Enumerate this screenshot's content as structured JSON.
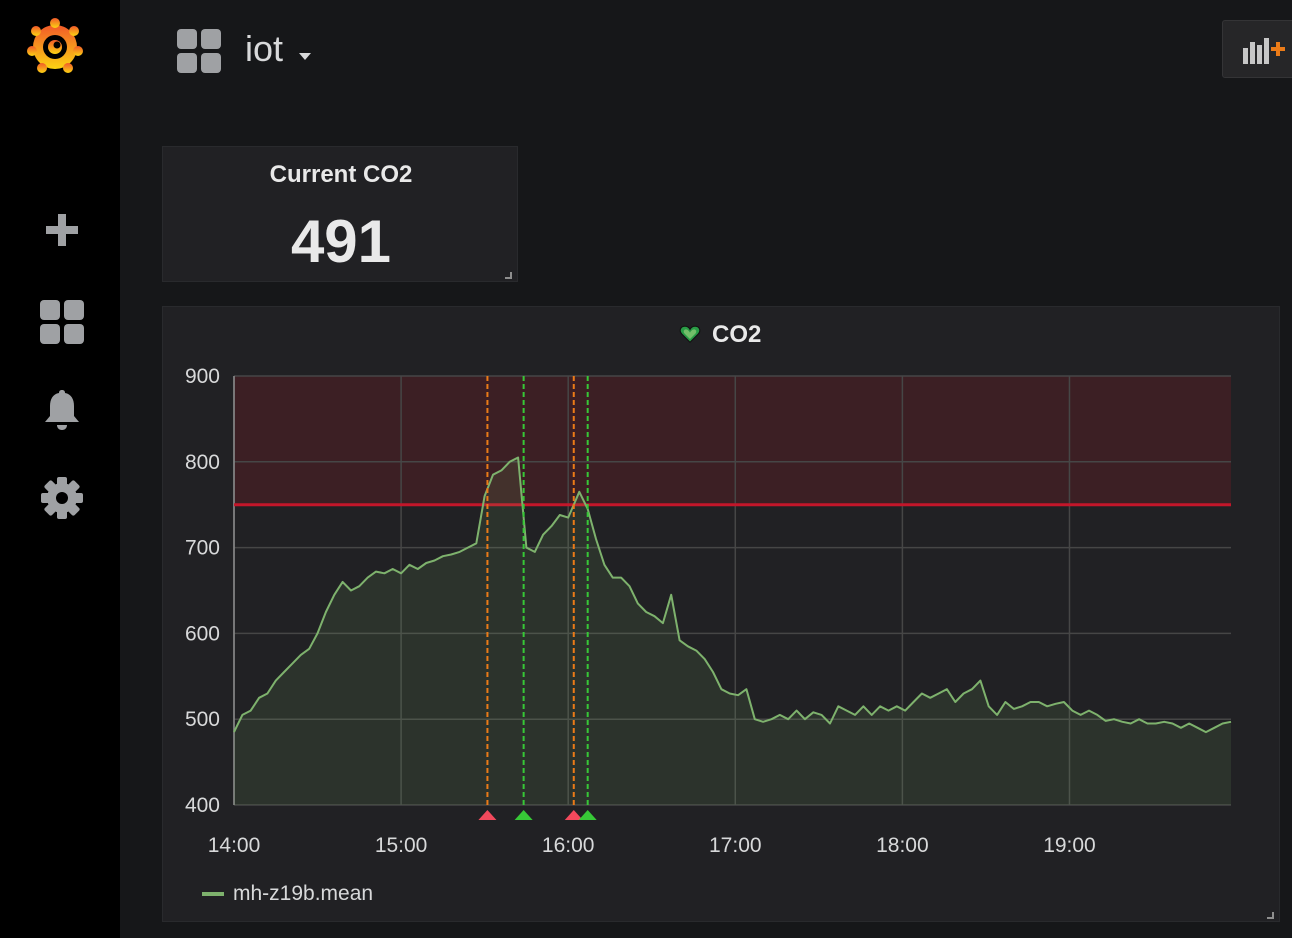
{
  "topbar": {
    "dashboard_title": "iot"
  },
  "sidebar": {
    "items": [
      {
        "icon": "plus-icon"
      },
      {
        "icon": "dashboards-icon"
      },
      {
        "icon": "bell-icon"
      },
      {
        "icon": "gear-icon"
      }
    ]
  },
  "stat_panel": {
    "title": "Current CO2",
    "value": "491"
  },
  "graph_panel": {
    "title": "CO2",
    "alert_state_icon": "heart-icon",
    "legend": [
      {
        "name": "mh-z19b.mean",
        "color": "#7eb26d"
      }
    ]
  },
  "chart_data": {
    "type": "area",
    "x_ticks": [
      "14:00",
      "15:00",
      "16:00",
      "17:00",
      "18:00",
      "19:00"
    ],
    "y_ticks": [
      "900",
      "800",
      "700",
      "600",
      "500",
      "400"
    ],
    "xlim": [
      "14:00",
      "19:58"
    ],
    "ylim": [
      400,
      900
    ],
    "grid": true,
    "legend_position": "bottom-left",
    "threshold": {
      "value": 750,
      "op": "gt",
      "color": "#c4162a"
    },
    "annotations": [
      {
        "time": "15:31",
        "state": "alerting",
        "color": "#f2495c"
      },
      {
        "time": "15:44",
        "state": "ok",
        "color": "#37872d"
      },
      {
        "time": "16:02",
        "state": "alerting",
        "color": "#f2495c"
      },
      {
        "time": "16:07",
        "state": "ok",
        "color": "#37872d"
      }
    ],
    "series": [
      {
        "name": "mh-z19b.mean",
        "color": "#7eb26d",
        "points": [
          [
            "14:00",
            485
          ],
          [
            "14:03",
            505
          ],
          [
            "14:06",
            510
          ],
          [
            "14:09",
            525
          ],
          [
            "14:12",
            530
          ],
          [
            "14:15",
            545
          ],
          [
            "14:18",
            555
          ],
          [
            "14:21",
            565
          ],
          [
            "14:24",
            575
          ],
          [
            "14:27",
            582
          ],
          [
            "14:30",
            600
          ],
          [
            "14:33",
            625
          ],
          [
            "14:36",
            645
          ],
          [
            "14:39",
            660
          ],
          [
            "14:42",
            650
          ],
          [
            "14:45",
            655
          ],
          [
            "14:48",
            665
          ],
          [
            "14:51",
            672
          ],
          [
            "14:54",
            670
          ],
          [
            "14:57",
            675
          ],
          [
            "15:00",
            670
          ],
          [
            "15:03",
            680
          ],
          [
            "15:06",
            675
          ],
          [
            "15:09",
            682
          ],
          [
            "15:12",
            685
          ],
          [
            "15:15",
            690
          ],
          [
            "15:18",
            692
          ],
          [
            "15:21",
            695
          ],
          [
            "15:24",
            700
          ],
          [
            "15:27",
            705
          ],
          [
            "15:30",
            760
          ],
          [
            "15:33",
            785
          ],
          [
            "15:36",
            790
          ],
          [
            "15:39",
            800
          ],
          [
            "15:42",
            805
          ],
          [
            "15:45",
            700
          ],
          [
            "15:48",
            695
          ],
          [
            "15:51",
            715
          ],
          [
            "15:54",
            725
          ],
          [
            "15:57",
            738
          ],
          [
            "16:00",
            735
          ],
          [
            "16:02",
            750
          ],
          [
            "16:04",
            765
          ],
          [
            "16:07",
            745
          ],
          [
            "16:10",
            710
          ],
          [
            "16:13",
            680
          ],
          [
            "16:16",
            665
          ],
          [
            "16:19",
            665
          ],
          [
            "16:22",
            655
          ],
          [
            "16:25",
            635
          ],
          [
            "16:28",
            625
          ],
          [
            "16:31",
            620
          ],
          [
            "16:34",
            612
          ],
          [
            "16:37",
            645
          ],
          [
            "16:40",
            592
          ],
          [
            "16:43",
            585
          ],
          [
            "16:46",
            580
          ],
          [
            "16:49",
            570
          ],
          [
            "16:52",
            555
          ],
          [
            "16:55",
            535
          ],
          [
            "16:58",
            530
          ],
          [
            "17:01",
            528
          ],
          [
            "17:04",
            535
          ],
          [
            "17:07",
            500
          ],
          [
            "17:10",
            497
          ],
          [
            "17:13",
            500
          ],
          [
            "17:16",
            505
          ],
          [
            "17:19",
            500
          ],
          [
            "17:22",
            510
          ],
          [
            "17:25",
            500
          ],
          [
            "17:28",
            508
          ],
          [
            "17:31",
            505
          ],
          [
            "17:34",
            495
          ],
          [
            "17:37",
            515
          ],
          [
            "17:40",
            510
          ],
          [
            "17:43",
            505
          ],
          [
            "17:46",
            515
          ],
          [
            "17:49",
            505
          ],
          [
            "17:52",
            515
          ],
          [
            "17:55",
            510
          ],
          [
            "17:58",
            515
          ],
          [
            "18:01",
            510
          ],
          [
            "18:04",
            520
          ],
          [
            "18:07",
            530
          ],
          [
            "18:10",
            525
          ],
          [
            "18:13",
            530
          ],
          [
            "18:16",
            535
          ],
          [
            "18:19",
            520
          ],
          [
            "18:22",
            530
          ],
          [
            "18:25",
            535
          ],
          [
            "18:28",
            545
          ],
          [
            "18:31",
            515
          ],
          [
            "18:34",
            505
          ],
          [
            "18:37",
            520
          ],
          [
            "18:40",
            512
          ],
          [
            "18:43",
            515
          ],
          [
            "18:46",
            520
          ],
          [
            "18:49",
            520
          ],
          [
            "18:52",
            515
          ],
          [
            "18:55",
            518
          ],
          [
            "18:58",
            520
          ],
          [
            "19:01",
            510
          ],
          [
            "19:04",
            505
          ],
          [
            "19:07",
            510
          ],
          [
            "19:10",
            505
          ],
          [
            "19:13",
            498
          ],
          [
            "19:16",
            500
          ],
          [
            "19:19",
            497
          ],
          [
            "19:22",
            495
          ],
          [
            "19:25",
            500
          ],
          [
            "19:28",
            495
          ],
          [
            "19:31",
            495
          ],
          [
            "19:34",
            497
          ],
          [
            "19:37",
            495
          ],
          [
            "19:40",
            490
          ],
          [
            "19:43",
            495
          ],
          [
            "19:46",
            490
          ],
          [
            "19:49",
            485
          ],
          [
            "19:52",
            490
          ],
          [
            "19:55",
            495
          ],
          [
            "19:58",
            497
          ]
        ]
      }
    ]
  }
}
